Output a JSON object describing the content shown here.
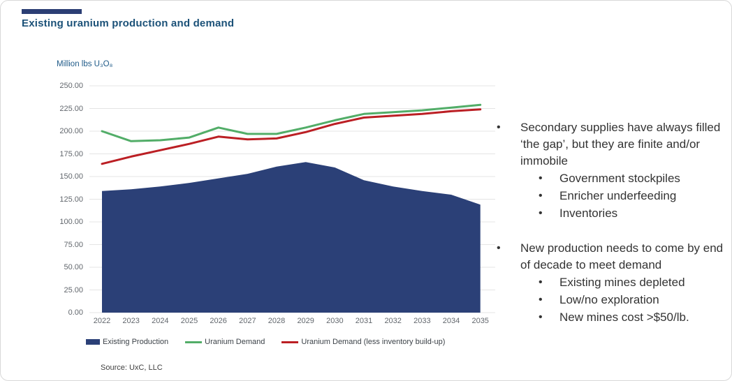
{
  "header": {
    "title": "Existing uranium production and demand"
  },
  "colors": {
    "accent_navy": "#2b3e74",
    "title_blue": "#1b5178",
    "unit_label_blue": "#1e5a88",
    "axis_text": "#62676d",
    "gridline": "#e4e4e4",
    "legend_text": "#3c4248",
    "note_text": "#333333",
    "source_text": "#3f3f3f",
    "area_navy": "#2b4077",
    "demand_green": "#52ad68",
    "demand_red": "#bb1f24"
  },
  "chart": {
    "unit_label": "Million lbs U₃O₈"
  },
  "chart_data": {
    "type": "combo (area + line)",
    "categories": [
      "2022",
      "2023",
      "2024",
      "2025",
      "2026",
      "2027",
      "2028",
      "2029",
      "2030",
      "2031",
      "2032",
      "2033",
      "2034",
      "2035"
    ],
    "series": [
      {
        "name": "Existing Production",
        "type": "area",
        "color": "#2b4077",
        "values": [
          134,
          136,
          139,
          143,
          148,
          153,
          161,
          166,
          160,
          146,
          139,
          134,
          130,
          119
        ]
      },
      {
        "name": "Uranium Demand",
        "type": "line",
        "color": "#52ad68",
        "values": [
          200,
          189,
          190,
          193,
          204,
          197,
          197,
          204,
          212,
          219,
          221,
          223,
          226,
          229
        ]
      },
      {
        "name": "Uranium Demand (less inventory build-up)",
        "type": "line",
        "color": "#bb1f24",
        "values": [
          164,
          172,
          179,
          186,
          194,
          191,
          192,
          199,
          208,
          215,
          217,
          219,
          222,
          224
        ]
      }
    ],
    "title": "Existing uranium production and demand",
    "xlabel": "",
    "ylabel": "Million lbs U₃O₈",
    "ylim": [
      0,
      250
    ],
    "ytick_step": 25,
    "ytick_format": "2dp",
    "grid": true,
    "legend_position": "bottom"
  },
  "legend": {
    "items": [
      {
        "label": "Existing Production",
        "marker": "area",
        "color": "#2b4077"
      },
      {
        "label": "Uranium Demand",
        "marker": "line",
        "color": "#52ad68"
      },
      {
        "label": "Uranium Demand (less inventory build-up)",
        "marker": "line",
        "color": "#bb1f24"
      }
    ]
  },
  "source": "Source: UxC, LLC",
  "notes": {
    "blocks": [
      {
        "text": "Secondary supplies have always filled ‘the gap’, but they are finite and/or immobile",
        "sub_items": [
          "Government stockpiles",
          "Enricher underfeeding",
          "Inventories"
        ]
      },
      {
        "text": "New production needs to come by end of decade to meet demand",
        "sub_items": [
          "Existing mines depleted",
          "Low/no exploration",
          "New mines cost >$50/lb."
        ]
      }
    ]
  }
}
